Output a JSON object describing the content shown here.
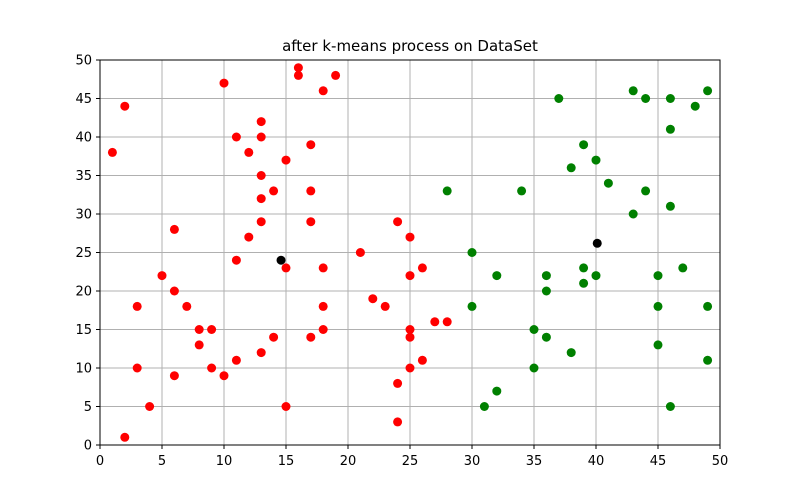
{
  "chart_data": {
    "type": "scatter",
    "title": "after k-means process on  DataSet",
    "xlabel": "",
    "ylabel": "",
    "xlim": [
      0,
      50
    ],
    "ylim": [
      0,
      50
    ],
    "xticks": [
      0,
      5,
      10,
      15,
      20,
      25,
      30,
      35,
      40,
      45,
      50
    ],
    "yticks": [
      0,
      5,
      10,
      15,
      20,
      25,
      30,
      35,
      40,
      45,
      50
    ],
    "grid": true,
    "series": [
      {
        "color": "#ff0000",
        "points": [
          [
            1,
            38
          ],
          [
            2,
            44
          ],
          [
            2,
            1
          ],
          [
            3,
            18
          ],
          [
            3,
            10
          ],
          [
            4,
            5
          ],
          [
            5,
            22
          ],
          [
            6,
            28
          ],
          [
            6,
            20
          ],
          [
            6,
            9
          ],
          [
            7,
            18
          ],
          [
            8,
            15
          ],
          [
            8,
            13
          ],
          [
            9,
            15
          ],
          [
            9,
            10
          ],
          [
            10,
            47
          ],
          [
            10,
            9
          ],
          [
            11,
            40
          ],
          [
            11,
            24
          ],
          [
            11,
            11
          ],
          [
            12,
            38
          ],
          [
            12,
            27
          ],
          [
            13,
            42
          ],
          [
            13,
            40
          ],
          [
            13,
            35
          ],
          [
            13,
            32
          ],
          [
            13,
            29
          ],
          [
            13,
            12
          ],
          [
            14,
            33
          ],
          [
            14,
            14
          ],
          [
            15,
            37
          ],
          [
            15,
            23
          ],
          [
            15,
            5
          ],
          [
            16,
            49
          ],
          [
            16,
            48
          ],
          [
            17,
            39
          ],
          [
            17,
            33
          ],
          [
            17,
            29
          ],
          [
            17,
            14
          ],
          [
            18,
            46
          ],
          [
            18,
            23
          ],
          [
            18,
            18
          ],
          [
            18,
            15
          ],
          [
            19,
            48
          ],
          [
            21,
            25
          ],
          [
            22,
            19
          ],
          [
            23,
            18
          ],
          [
            24,
            29
          ],
          [
            24,
            8
          ],
          [
            24,
            3
          ],
          [
            25,
            27
          ],
          [
            25,
            22
          ],
          [
            25,
            15
          ],
          [
            25,
            14
          ],
          [
            25,
            10
          ],
          [
            26,
            23
          ],
          [
            26,
            11
          ],
          [
            27,
            16
          ],
          [
            28,
            16
          ]
        ]
      },
      {
        "color": "#008000",
        "points": [
          [
            28,
            33
          ],
          [
            30,
            25
          ],
          [
            30,
            18
          ],
          [
            31,
            5
          ],
          [
            32,
            22
          ],
          [
            32,
            7
          ],
          [
            34,
            33
          ],
          [
            35,
            15
          ],
          [
            35,
            10
          ],
          [
            36,
            22
          ],
          [
            36,
            20
          ],
          [
            36,
            14
          ],
          [
            37,
            45
          ],
          [
            38,
            36
          ],
          [
            38,
            12
          ],
          [
            39,
            39
          ],
          [
            39,
            23
          ],
          [
            39,
            21
          ],
          [
            40,
            37
          ],
          [
            40,
            22
          ],
          [
            41,
            34
          ],
          [
            43,
            46
          ],
          [
            43,
            30
          ],
          [
            44,
            45
          ],
          [
            44,
            33
          ],
          [
            45,
            22
          ],
          [
            45,
            18
          ],
          [
            45,
            13
          ],
          [
            46,
            45
          ],
          [
            46,
            41
          ],
          [
            46,
            31
          ],
          [
            46,
            5
          ],
          [
            47,
            23
          ],
          [
            48,
            44
          ],
          [
            49,
            46
          ],
          [
            49,
            18
          ],
          [
            49,
            11
          ]
        ]
      },
      {
        "color": "#000000",
        "points": [
          [
            14.6,
            24.0
          ],
          [
            40.1,
            26.2
          ]
        ]
      }
    ]
  }
}
